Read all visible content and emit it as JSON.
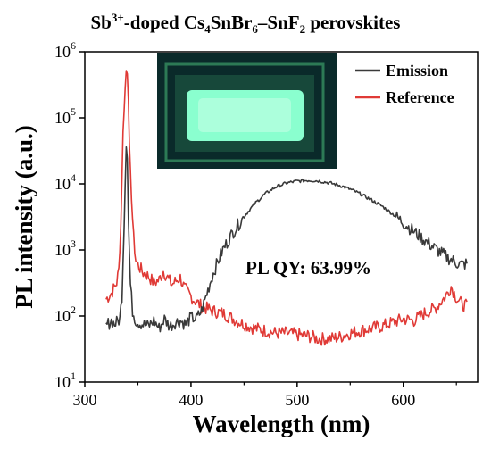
{
  "chart_data": {
    "type": "line",
    "title": {
      "parts": [
        {
          "t": "Sb",
          "s": "normal"
        },
        {
          "t": "3+",
          "s": "sup"
        },
        {
          "t": "-doped Cs",
          "s": "normal"
        },
        {
          "t": "4",
          "s": "sub"
        },
        {
          "t": "SnBr",
          "s": "normal"
        },
        {
          "t": "6",
          "s": "sub"
        },
        {
          "t": "–SnF",
          "s": "normal"
        },
        {
          "t": "2",
          "s": "sub"
        },
        {
          "t": " perovskites",
          "s": "normal"
        }
      ]
    },
    "xlabel": "Wavelength (nm)",
    "ylabel": "PL intensity (a.u.)",
    "xlim": [
      300,
      670
    ],
    "ylim": [
      10,
      1000000
    ],
    "yscale": "log",
    "xticks": [
      300,
      400,
      500,
      600
    ],
    "yticks": [
      {
        "base": "10",
        "exp": "1"
      },
      {
        "base": "10",
        "exp": "2"
      },
      {
        "base": "10",
        "exp": "3"
      },
      {
        "base": "10",
        "exp": "4"
      },
      {
        "base": "10",
        "exp": "5"
      },
      {
        "base": "10",
        "exp": "6"
      }
    ],
    "annotation": "PL QY: 63.99%",
    "inset": "photo of green-emitting sample",
    "legend": {
      "position": "top-right"
    },
    "series": [
      {
        "name": "Emission",
        "color": "#3a3a3a",
        "x": [
          320,
          325,
          328,
          330,
          333,
          335,
          337,
          339,
          340,
          341,
          343,
          345,
          348,
          350,
          355,
          360,
          365,
          370,
          375,
          380,
          385,
          390,
          395,
          400,
          405,
          410,
          415,
          420,
          425,
          430,
          440,
          450,
          460,
          470,
          480,
          490,
          500,
          510,
          520,
          530,
          540,
          550,
          560,
          570,
          580,
          590,
          600,
          610,
          620,
          630,
          640,
          650,
          655,
          660
        ],
        "y": [
          70,
          85,
          75,
          80,
          90,
          200,
          2500,
          38000,
          25000,
          3000,
          300,
          120,
          85,
          80,
          75,
          70,
          85,
          65,
          90,
          70,
          80,
          85,
          75,
          95,
          90,
          120,
          220,
          400,
          650,
          1000,
          1900,
          3200,
          5000,
          7100,
          9000,
          10300,
          11000,
          11300,
          11100,
          10400,
          9500,
          8300,
          7000,
          5700,
          4600,
          3500,
          2600,
          1900,
          1400,
          1050,
          800,
          640,
          600,
          620
        ],
        "noise": 0.2
      },
      {
        "name": "Reference",
        "color": "#e03a36",
        "x": [
          320,
          325,
          330,
          332,
          334,
          336,
          338,
          339,
          340,
          341,
          342,
          344,
          346,
          348,
          350,
          355,
          360,
          365,
          370,
          374,
          378,
          382,
          386,
          390,
          394,
          398,
          402,
          406,
          410,
          420,
          430,
          440,
          450,
          460,
          470,
          480,
          490,
          500,
          510,
          520,
          530,
          540,
          550,
          560,
          570,
          580,
          590,
          600,
          610,
          620,
          630,
          640,
          645,
          650,
          655,
          660
        ],
        "y": [
          180,
          220,
          320,
          500,
          2500,
          60000,
          280000,
          520000,
          480000,
          200000,
          40000,
          6000,
          1500,
          700,
          600,
          450,
          400,
          320,
          350,
          480,
          380,
          300,
          340,
          380,
          260,
          220,
          180,
          160,
          140,
          120,
          110,
          90,
          75,
          65,
          60,
          55,
          55,
          52,
          50,
          45,
          45,
          48,
          55,
          60,
          65,
          70,
          80,
          90,
          85,
          110,
          130,
          200,
          280,
          190,
          150,
          140
        ],
        "noise": 0.2
      }
    ]
  }
}
